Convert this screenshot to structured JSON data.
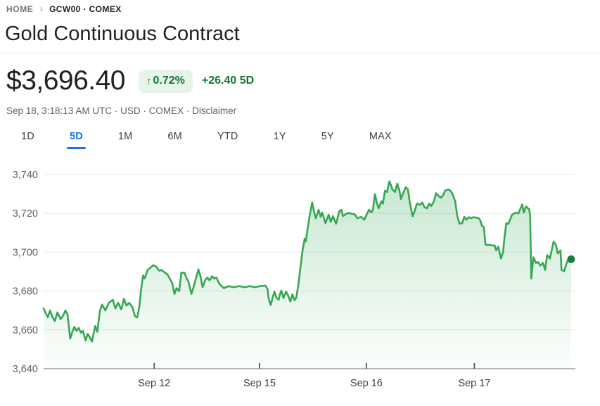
{
  "breadcrumb": {
    "home": "HOME",
    "chevron": "›",
    "symbol": "GCW00 · COMEX"
  },
  "header": {
    "title": "Gold Continuous Contract"
  },
  "quote": {
    "price": "$3,696.40",
    "change_badge": {
      "arrow": "↑",
      "percent": "0.72%"
    },
    "change_text": "+26.40 5D",
    "meta_text": "Sep 18, 3:18:13 AM UTC · USD · COMEX ·",
    "disclaimer_label": "Disclaimer"
  },
  "range_tabs": [
    {
      "label": "1D",
      "active": false
    },
    {
      "label": "5D",
      "active": true
    },
    {
      "label": "1M",
      "active": false
    },
    {
      "label": "6M",
      "active": false
    },
    {
      "label": "YTD",
      "active": false
    },
    {
      "label": "1Y",
      "active": false
    },
    {
      "label": "5Y",
      "active": false
    },
    {
      "label": "MAX",
      "active": false
    }
  ],
  "colors": {
    "accent_blue": "#1a73e8",
    "green_text": "#137333",
    "badge_bg": "#e6f4ea",
    "line_green": "#34a853",
    "dot_green": "#188038",
    "grid_light": "#e8eaed",
    "axis_gray": "#9aa0a6",
    "label_gray": "#5f6368"
  },
  "chart_data": {
    "type": "area",
    "title": "Gold Continuous Contract — 5 day price chart (USD)",
    "ylim": [
      3640,
      3740
    ],
    "y_ticks": [
      3740,
      3720,
      3700,
      3680,
      3660,
      3640
    ],
    "y_tick_labels": [
      "3,740",
      "3,720",
      "3,700",
      "3,680",
      "3,660",
      "3,640"
    ],
    "x_ticks": [
      {
        "label": "Sep 12",
        "pos": 0.208
      },
      {
        "label": "Sep 15",
        "pos": 0.406
      },
      {
        "label": "Sep 16",
        "pos": 0.607
      },
      {
        "label": "Sep 17",
        "pos": 0.81
      }
    ],
    "grid": true,
    "legend": "none",
    "line_color": "#34a853",
    "dot_color": "#188038",
    "fill_top": "rgba(52,168,83,0.28)",
    "fill_mid": "rgba(52,168,83,0.11)",
    "fill_bottom": "rgba(52,168,83,0.02)",
    "last_point": {
      "pos": 0.992,
      "price": 3696.4
    },
    "series": [
      {
        "name": "GCW00",
        "points": [
          [
            0.0,
            3671
          ],
          [
            0.004,
            3668.5
          ],
          [
            0.008,
            3666.5
          ],
          [
            0.012,
            3670
          ],
          [
            0.016,
            3667
          ],
          [
            0.021,
            3664.5
          ],
          [
            0.026,
            3669
          ],
          [
            0.032,
            3665.5
          ],
          [
            0.037,
            3667.5
          ],
          [
            0.041,
            3670
          ],
          [
            0.045,
            3668
          ],
          [
            0.05,
            3655.5
          ],
          [
            0.054,
            3659
          ],
          [
            0.058,
            3661.5
          ],
          [
            0.062,
            3659.5
          ],
          [
            0.066,
            3661
          ],
          [
            0.07,
            3658.5
          ],
          [
            0.074,
            3659.5
          ],
          [
            0.079,
            3654.5
          ],
          [
            0.083,
            3658
          ],
          [
            0.087,
            3656
          ],
          [
            0.091,
            3654
          ],
          [
            0.097,
            3662
          ],
          [
            0.101,
            3659
          ],
          [
            0.106,
            3670
          ],
          [
            0.11,
            3673
          ],
          [
            0.116,
            3670
          ],
          [
            0.123,
            3674
          ],
          [
            0.13,
            3675.5
          ],
          [
            0.135,
            3671
          ],
          [
            0.14,
            3674
          ],
          [
            0.146,
            3670.5
          ],
          [
            0.151,
            3676
          ],
          [
            0.156,
            3672.5
          ],
          [
            0.161,
            3674
          ],
          [
            0.167,
            3671.5
          ],
          [
            0.172,
            3667
          ],
          [
            0.176,
            3666.5
          ],
          [
            0.18,
            3672
          ],
          [
            0.183,
            3680
          ],
          [
            0.187,
            3688
          ],
          [
            0.19,
            3686.5
          ],
          [
            0.196,
            3691
          ],
          [
            0.201,
            3692
          ],
          [
            0.206,
            3693.3
          ],
          [
            0.212,
            3692.5
          ],
          [
            0.217,
            3690.5
          ],
          [
            0.222,
            3690.8
          ],
          [
            0.228,
            3689.5
          ],
          [
            0.233,
            3688.5
          ],
          [
            0.238,
            3686
          ],
          [
            0.242,
            3684
          ],
          [
            0.246,
            3678.5
          ],
          [
            0.25,
            3681.5
          ],
          [
            0.255,
            3680
          ],
          [
            0.259,
            3689.4
          ],
          [
            0.265,
            3689.4
          ],
          [
            0.269,
            3686.4
          ],
          [
            0.272,
            3685.2
          ],
          [
            0.278,
            3678.5
          ],
          [
            0.284,
            3683.9
          ],
          [
            0.291,
            3691.2
          ],
          [
            0.295,
            3687.6
          ],
          [
            0.299,
            3682
          ],
          [
            0.304,
            3685.7
          ],
          [
            0.308,
            3686.9
          ],
          [
            0.312,
            3685.5
          ],
          [
            0.317,
            3687.6
          ],
          [
            0.321,
            3686.4
          ],
          [
            0.325,
            3686.9
          ],
          [
            0.331,
            3683.5
          ],
          [
            0.339,
            3681.5
          ],
          [
            0.348,
            3682.5
          ],
          [
            0.357,
            3682
          ],
          [
            0.368,
            3682.5
          ],
          [
            0.378,
            3682
          ],
          [
            0.388,
            3682.5
          ],
          [
            0.397,
            3682
          ],
          [
            0.407,
            3682.5
          ],
          [
            0.417,
            3682.8
          ],
          [
            0.421,
            3681
          ],
          [
            0.423,
            3676.4
          ],
          [
            0.427,
            3672.8
          ],
          [
            0.431,
            3677
          ],
          [
            0.434,
            3679.7
          ],
          [
            0.438,
            3676.5
          ],
          [
            0.442,
            3675.5
          ],
          [
            0.444,
            3678
          ],
          [
            0.447,
            3680.2
          ],
          [
            0.451,
            3676.4
          ],
          [
            0.456,
            3679.7
          ],
          [
            0.46,
            3677.5
          ],
          [
            0.464,
            3674.6
          ],
          [
            0.468,
            3678.3
          ],
          [
            0.472,
            3675.2
          ],
          [
            0.475,
            3676.5
          ],
          [
            0.479,
            3683
          ],
          [
            0.483,
            3692
          ],
          [
            0.487,
            3701
          ],
          [
            0.491,
            3707
          ],
          [
            0.493,
            3705.5
          ],
          [
            0.497,
            3713
          ],
          [
            0.501,
            3720
          ],
          [
            0.505,
            3725.6
          ],
          [
            0.509,
            3720.3
          ],
          [
            0.512,
            3717.5
          ],
          [
            0.517,
            3721.8
          ],
          [
            0.521,
            3718.2
          ],
          [
            0.524,
            3720.4
          ],
          [
            0.53,
            3714.9
          ],
          [
            0.536,
            3719.3
          ],
          [
            0.54,
            3715.6
          ],
          [
            0.544,
            3718.6
          ],
          [
            0.55,
            3714.6
          ],
          [
            0.556,
            3721
          ],
          [
            0.56,
            3721.8
          ],
          [
            0.563,
            3718.6
          ],
          [
            0.569,
            3719.8
          ],
          [
            0.574,
            3720.2
          ],
          [
            0.579,
            3719.8
          ],
          [
            0.585,
            3719.5
          ],
          [
            0.59,
            3717.5
          ],
          [
            0.597,
            3718.2
          ],
          [
            0.603,
            3716.7
          ],
          [
            0.609,
            3720.2
          ],
          [
            0.612,
            3721.9
          ],
          [
            0.616,
            3720.5
          ],
          [
            0.619,
            3721.4
          ],
          [
            0.623,
            3729.9
          ],
          [
            0.627,
            3725
          ],
          [
            0.63,
            3722.6
          ],
          [
            0.635,
            3726.2
          ],
          [
            0.638,
            3725
          ],
          [
            0.642,
            3731.7
          ],
          [
            0.646,
            3731
          ],
          [
            0.65,
            3736.5
          ],
          [
            0.653,
            3734.7
          ],
          [
            0.656,
            3732.3
          ],
          [
            0.661,
            3731
          ],
          [
            0.665,
            3735.3
          ],
          [
            0.669,
            3731.7
          ],
          [
            0.672,
            3727.4
          ],
          [
            0.676,
            3730.4
          ],
          [
            0.681,
            3733.5
          ],
          [
            0.685,
            3732.3
          ],
          [
            0.689,
            3725
          ],
          [
            0.694,
            3718.4
          ],
          [
            0.698,
            3721.4
          ],
          [
            0.702,
            3725
          ],
          [
            0.708,
            3724.4
          ],
          [
            0.712,
            3725.6
          ],
          [
            0.716,
            3723.2
          ],
          [
            0.721,
            3722.6
          ],
          [
            0.725,
            3725
          ],
          [
            0.729,
            3723.8
          ],
          [
            0.734,
            3726.2
          ],
          [
            0.738,
            3730.4
          ],
          [
            0.742,
            3729.2
          ],
          [
            0.747,
            3728
          ],
          [
            0.751,
            3729.2
          ],
          [
            0.755,
            3731.7
          ],
          [
            0.761,
            3732.3
          ],
          [
            0.765,
            3731.7
          ],
          [
            0.769,
            3729.9
          ],
          [
            0.774,
            3726.2
          ],
          [
            0.778,
            3718.4
          ],
          [
            0.782,
            3714.7
          ],
          [
            0.787,
            3714.9
          ],
          [
            0.791,
            3718.2
          ],
          [
            0.795,
            3716.7
          ],
          [
            0.8,
            3718
          ],
          [
            0.804,
            3717.5
          ],
          [
            0.808,
            3718
          ],
          [
            0.814,
            3717.8
          ],
          [
            0.818,
            3717.5
          ],
          [
            0.821,
            3716.5
          ],
          [
            0.824,
            3713.8
          ],
          [
            0.828,
            3712.7
          ],
          [
            0.831,
            3704
          ],
          [
            0.835,
            3703.6
          ],
          [
            0.839,
            3703.8
          ],
          [
            0.843,
            3703.4
          ],
          [
            0.848,
            3703.5
          ],
          [
            0.851,
            3700.9
          ],
          [
            0.855,
            3702.9
          ],
          [
            0.86,
            3696.7
          ],
          [
            0.864,
            3700
          ],
          [
            0.866,
            3705.8
          ],
          [
            0.87,
            3714.9
          ],
          [
            0.874,
            3714.6
          ],
          [
            0.881,
            3719.3
          ],
          [
            0.888,
            3720.4
          ],
          [
            0.893,
            3720
          ],
          [
            0.9,
            3724.6
          ],
          [
            0.903,
            3720.4
          ],
          [
            0.907,
            3723.5
          ],
          [
            0.913,
            3722.1
          ],
          [
            0.915,
            3719
          ],
          [
            0.917,
            3686.4
          ],
          [
            0.921,
            3697.4
          ],
          [
            0.926,
            3694.5
          ],
          [
            0.93,
            3694.9
          ],
          [
            0.934,
            3693.1
          ],
          [
            0.939,
            3694.5
          ],
          [
            0.943,
            3690.9
          ],
          [
            0.947,
            3698.5
          ],
          [
            0.952,
            3696.7
          ],
          [
            0.959,
            3705.4
          ],
          [
            0.963,
            3704
          ],
          [
            0.967,
            3699.3
          ],
          [
            0.972,
            3700.9
          ],
          [
            0.974,
            3690.9
          ],
          [
            0.979,
            3690.2
          ],
          [
            0.985,
            3695.7
          ],
          [
            0.992,
            3696.4
          ]
        ]
      }
    ]
  }
}
